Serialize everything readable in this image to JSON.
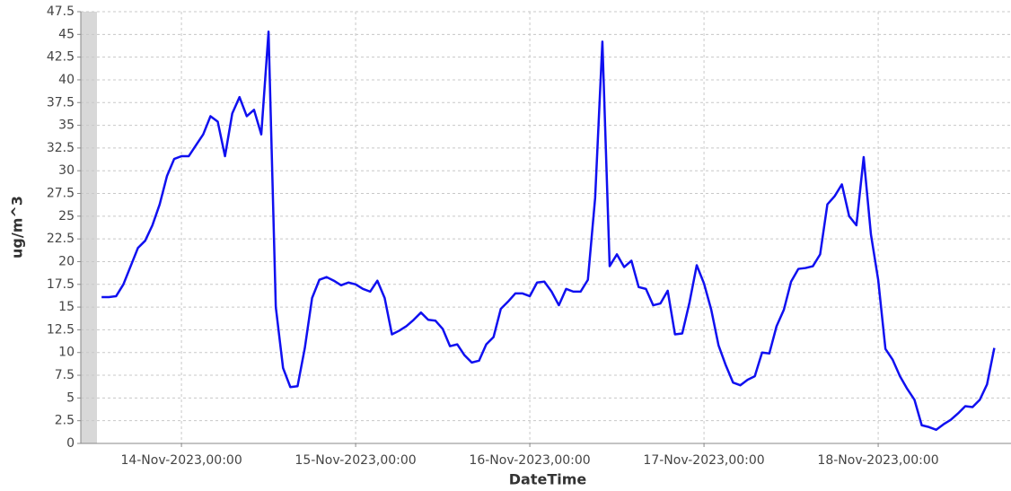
{
  "chart_data": {
    "type": "line",
    "y_label": "ug/m^3",
    "x_label": "DateTime",
    "x": [
      "2023-11-13 13:00",
      "2023-11-13 14:00",
      "2023-11-13 15:00",
      "2023-11-13 16:00",
      "2023-11-13 17:00",
      "2023-11-13 18:00",
      "2023-11-13 19:00",
      "2023-11-13 20:00",
      "2023-11-13 21:00",
      "2023-11-13 22:00",
      "2023-11-13 23:00",
      "2023-11-14 00:00",
      "2023-11-14 01:00",
      "2023-11-14 02:00",
      "2023-11-14 03:00",
      "2023-11-14 04:00",
      "2023-11-14 05:00",
      "2023-11-14 06:00",
      "2023-11-14 07:00",
      "2023-11-14 08:00",
      "2023-11-14 09:00",
      "2023-11-14 10:00",
      "2023-11-14 11:00",
      "2023-11-14 12:00",
      "2023-11-14 13:00",
      "2023-11-14 14:00",
      "2023-11-14 15:00",
      "2023-11-14 16:00",
      "2023-11-14 17:00",
      "2023-11-14 18:00",
      "2023-11-14 19:00",
      "2023-11-14 20:00",
      "2023-11-14 21:00",
      "2023-11-14 22:00",
      "2023-11-14 23:00",
      "2023-11-15 00:00",
      "2023-11-15 01:00",
      "2023-11-15 02:00",
      "2023-11-15 03:00",
      "2023-11-15 04:00",
      "2023-11-15 05:00",
      "2023-11-15 06:00",
      "2023-11-15 07:00",
      "2023-11-15 08:00",
      "2023-11-15 09:00",
      "2023-11-15 10:00",
      "2023-11-15 11:00",
      "2023-11-15 12:00",
      "2023-11-15 13:00",
      "2023-11-15 14:00",
      "2023-11-15 15:00",
      "2023-11-15 16:00",
      "2023-11-15 17:00",
      "2023-11-15 18:00",
      "2023-11-15 19:00",
      "2023-11-15 20:00",
      "2023-11-15 21:00",
      "2023-11-15 22:00",
      "2023-11-15 23:00",
      "2023-11-16 00:00",
      "2023-11-16 01:00",
      "2023-11-16 02:00",
      "2023-11-16 03:00",
      "2023-11-16 04:00",
      "2023-11-16 05:00",
      "2023-11-16 06:00",
      "2023-11-16 07:00",
      "2023-11-16 08:00",
      "2023-11-16 09:00",
      "2023-11-16 10:00",
      "2023-11-16 11:00",
      "2023-11-16 12:00",
      "2023-11-16 13:00",
      "2023-11-16 14:00",
      "2023-11-16 15:00",
      "2023-11-16 16:00",
      "2023-11-16 17:00",
      "2023-11-16 18:00",
      "2023-11-16 19:00",
      "2023-11-16 20:00",
      "2023-11-16 21:00",
      "2023-11-16 22:00",
      "2023-11-16 23:00",
      "2023-11-17 00:00",
      "2023-11-17 01:00",
      "2023-11-17 02:00",
      "2023-11-17 03:00",
      "2023-11-17 04:00",
      "2023-11-17 05:00",
      "2023-11-17 06:00",
      "2023-11-17 07:00",
      "2023-11-17 08:00",
      "2023-11-17 09:00",
      "2023-11-17 10:00",
      "2023-11-17 11:00",
      "2023-11-17 12:00",
      "2023-11-17 13:00",
      "2023-11-17 14:00",
      "2023-11-17 15:00",
      "2023-11-17 16:00",
      "2023-11-17 17:00",
      "2023-11-17 18:00",
      "2023-11-17 19:00",
      "2023-11-17 20:00",
      "2023-11-17 21:00",
      "2023-11-17 22:00",
      "2023-11-17 23:00",
      "2023-11-18 00:00",
      "2023-11-18 01:00",
      "2023-11-18 02:00",
      "2023-11-18 03:00",
      "2023-11-18 04:00",
      "2023-11-18 05:00",
      "2023-11-18 06:00",
      "2023-11-18 07:00",
      "2023-11-18 08:00",
      "2023-11-18 09:00",
      "2023-11-18 10:00",
      "2023-11-18 11:00",
      "2023-11-18 12:00",
      "2023-11-18 13:00",
      "2023-11-18 14:00",
      "2023-11-18 15:00",
      "2023-11-18 16:00"
    ],
    "series": [
      {
        "color": "#1010f0",
        "values": [
          16.1,
          16.1,
          16.2,
          17.5,
          19.5,
          21.5,
          22.3,
          24,
          26.3,
          29.4,
          31.3,
          31.6,
          31.6,
          32.8,
          34,
          36,
          35.4,
          31.6,
          36.3,
          38.1,
          36,
          36.7,
          34,
          45.3,
          15,
          8.3,
          6.2,
          6.3,
          10.5,
          16,
          18,
          18.3,
          17.9,
          17.4,
          17.7,
          17.5,
          17,
          16.7,
          17.9,
          16,
          12,
          12.4,
          12.9,
          13.6,
          14.4,
          13.6,
          13.5,
          12.6,
          10.7,
          10.9,
          9.7,
          8.9,
          9.1,
          10.9,
          11.7,
          14.8,
          15.6,
          16.5,
          16.5,
          16.2,
          17.7,
          17.8,
          16.7,
          15.2,
          17,
          16.7,
          16.7,
          18,
          27,
          44.2,
          19.5,
          20.8,
          19.4,
          20.1,
          17.2,
          17,
          15.2,
          15.4,
          16.8,
          12,
          12.1,
          15.5,
          19.6,
          17.6,
          14.7,
          10.8,
          8.6,
          6.7,
          6.4,
          7,
          7.4,
          10,
          9.9,
          12.9,
          14.7,
          17.8,
          19.2,
          19.3,
          19.5,
          20.8,
          26.3,
          27.2,
          28.5,
          25,
          24,
          31.5,
          23,
          18,
          10.4,
          9.2,
          7.4,
          6,
          4.8,
          2,
          1.8,
          1.5,
          2.1,
          2.6,
          3.3,
          4.1,
          4,
          4.8,
          6.5,
          10.5
        ]
      }
    ],
    "xlim": [
      "2023-11-13 10:08",
      "2023-11-18 18:18"
    ],
    "xticks": [
      {
        "value": "2023-11-14 00:00",
        "label": "14-Nov-2023,00:00"
      },
      {
        "value": "2023-11-15 00:00",
        "label": "15-Nov-2023,00:00"
      },
      {
        "value": "2023-11-16 00:00",
        "label": "16-Nov-2023,00:00"
      },
      {
        "value": "2023-11-17 00:00",
        "label": "17-Nov-2023,00:00"
      },
      {
        "value": "2023-11-18 00:00",
        "label": "18-Nov-2023,00:00"
      }
    ],
    "ylim": [
      0,
      47.5
    ],
    "yticks": [
      0,
      2.5,
      5,
      7.5,
      10,
      12.5,
      15,
      17.5,
      20,
      22.5,
      25,
      27.5,
      30,
      32.5,
      35,
      37.5,
      40,
      42.5,
      45,
      47.5
    ],
    "grid": true
  }
}
